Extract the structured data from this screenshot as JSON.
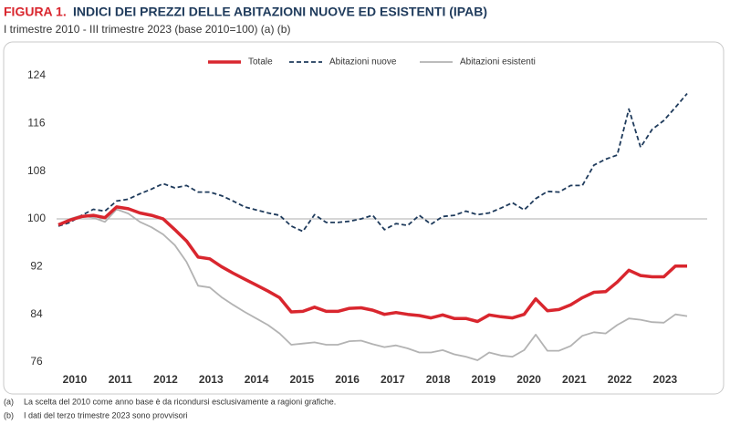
{
  "chart_data": {
    "type": "line",
    "title_label": "FIGURA 1.",
    "title": "INDICI DEI PREZZI DELLE ABITAZIONI NUOVE ED ESISTENTI (IPAB)",
    "subtitle": "I trimestre 2010 - III trimestre 2023 (base 2010=100) (a) (b)",
    "years": [
      "2010",
      "2011",
      "2012",
      "2013",
      "2014",
      "2015",
      "2016",
      "2017",
      "2018",
      "2019",
      "2020",
      "2021",
      "2022",
      "2023"
    ],
    "ylim": [
      76,
      124
    ],
    "yticks": [
      76,
      84,
      92,
      100,
      108,
      116,
      124
    ],
    "reference_line": 100,
    "series": [
      {
        "name": "Totale",
        "color": "#d9262e",
        "style": "solid",
        "width": 3.5,
        "values": [
          99.0,
          99.8,
          100.4,
          100.6,
          100.2,
          102.0,
          101.7,
          101.0,
          100.6,
          100.0,
          98.2,
          96.3,
          93.6,
          93.3,
          92.0,
          90.9,
          89.9,
          88.9,
          87.9,
          86.8,
          84.4,
          84.5,
          85.2,
          84.5,
          84.5,
          85.0,
          85.1,
          84.7,
          84.0,
          84.3,
          84.0,
          83.8,
          83.4,
          83.9,
          83.3,
          83.3,
          82.8,
          83.9,
          83.6,
          83.4,
          84.0,
          86.6,
          84.6,
          84.8,
          85.6,
          86.8,
          87.7,
          87.8,
          89.4,
          91.4,
          90.5,
          90.3,
          90.3,
          92.1,
          92.1
        ]
      },
      {
        "name": "Abitazioni nuove",
        "color": "#1f3b5c",
        "style": "dashed",
        "width": 1.8,
        "values": [
          98.8,
          99.4,
          100.6,
          101.6,
          101.3,
          103.0,
          103.3,
          104.2,
          105.0,
          105.9,
          105.2,
          105.6,
          104.5,
          104.5,
          103.9,
          103.0,
          102.0,
          101.5,
          101.0,
          100.6,
          98.8,
          97.9,
          100.7,
          99.4,
          99.4,
          99.6,
          100.0,
          100.6,
          98.2,
          99.2,
          98.9,
          100.6,
          99.1,
          100.4,
          100.6,
          101.3,
          100.7,
          101.0,
          101.8,
          102.7,
          101.5,
          103.4,
          104.6,
          104.5,
          105.6,
          105.6,
          109.0,
          110.0,
          110.7,
          118.4,
          112.0,
          115.0,
          116.5,
          118.7,
          121.0
        ]
      },
      {
        "name": "Abitazioni esistenti",
        "color": "#b3b3b3",
        "style": "solid",
        "width": 1.8,
        "values": [
          99.0,
          100.0,
          100.6,
          100.2,
          99.5,
          101.6,
          100.9,
          99.5,
          98.6,
          97.4,
          95.6,
          92.8,
          88.8,
          88.5,
          86.9,
          85.6,
          84.4,
          83.3,
          82.2,
          80.8,
          78.9,
          79.1,
          79.3,
          78.9,
          78.9,
          79.5,
          79.6,
          79.0,
          78.5,
          78.8,
          78.3,
          77.6,
          77.6,
          78.0,
          77.3,
          76.9,
          76.3,
          77.6,
          77.1,
          76.9,
          78.0,
          80.6,
          77.9,
          77.9,
          78.7,
          80.4,
          81.0,
          80.8,
          82.2,
          83.3,
          83.1,
          82.7,
          82.6,
          84.0,
          83.7
        ]
      }
    ],
    "notes": [
      {
        "marker": "(a)",
        "text": "La scelta del 2010 come anno base è da ricondursi esclusivamente a ragioni grafiche."
      },
      {
        "marker": "(b)",
        "text": "I dati del terzo trimestre 2023 sono provvisori"
      }
    ]
  }
}
